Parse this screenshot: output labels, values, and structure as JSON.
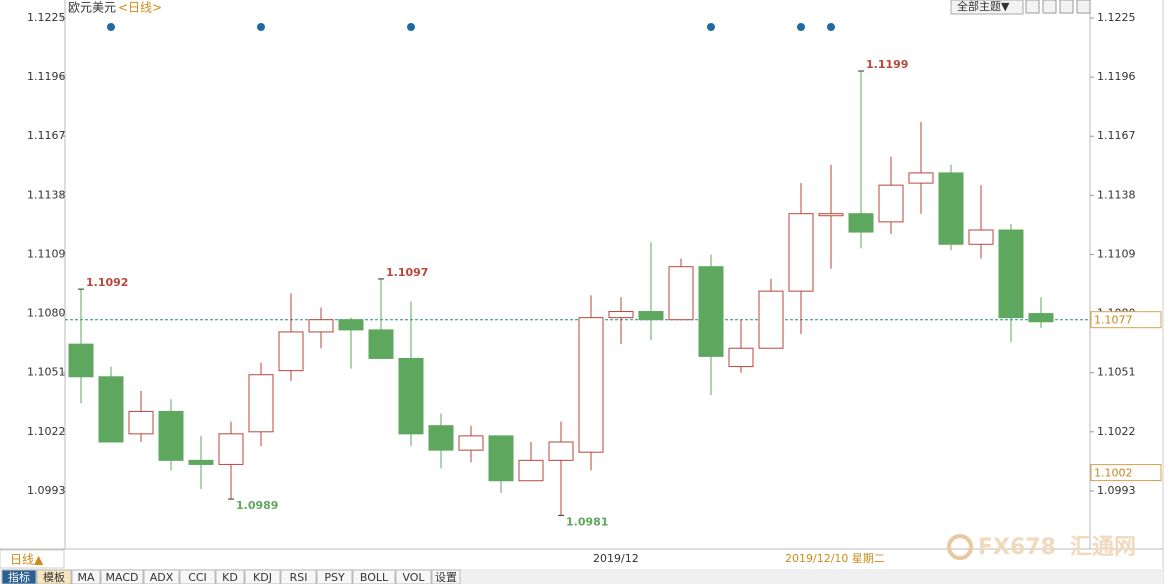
{
  "chart_data": {
    "type": "candlestick",
    "title": "欧元美元",
    "period": "<日线>",
    "theme_button": "全部主题▼",
    "period_tab": "日线▲",
    "x_label": "2019/12",
    "cursor_date": "2019/12/10 星期二",
    "watermark": [
      "FX678",
      "汇通网"
    ],
    "tabs": [
      "指标",
      "模板",
      "MA",
      "MACD",
      "ADX",
      "CCI",
      "KD",
      "KDJ",
      "RSI",
      "PSY",
      "BOLL",
      "VOL",
      "设置"
    ],
    "categories": [
      null,
      null,
      null,
      null,
      null,
      null,
      null,
      null,
      null,
      null,
      null,
      null,
      null,
      null,
      null,
      null,
      null,
      null,
      null,
      null,
      null,
      null,
      null,
      null,
      null,
      null,
      null,
      null,
      null,
      null,
      null,
      null,
      null
    ],
    "open": [
      1.1065,
      1.1049,
      1.1021,
      1.1032,
      1.1008,
      1.1006,
      1.1022,
      1.1052,
      1.1071,
      1.1077,
      1.1072,
      1.1058,
      1.1025,
      1.1013,
      1.102,
      1.0998,
      1.1008,
      1.1012,
      1.1078,
      1.1081,
      1.1077,
      1.1103,
      1.1054,
      1.1063,
      1.1091,
      1.1128,
      1.1129,
      1.1125,
      1.1144,
      1.1149,
      1.1114,
      1.1121,
      1.108
    ],
    "high": [
      1.1092,
      1.1054,
      1.1042,
      1.1038,
      1.102,
      1.1027,
      1.1056,
      1.109,
      1.1083,
      1.1078,
      1.1097,
      1.1086,
      1.1031,
      1.1025,
      1.102,
      1.1017,
      1.1027,
      1.1089,
      1.1088,
      1.1115,
      1.1107,
      1.1109,
      1.1077,
      1.1097,
      1.1144,
      1.1153,
      1.1199,
      1.1157,
      1.1174,
      1.1153,
      1.1143,
      1.1124,
      1.1088
    ],
    "low": [
      1.1036,
      1.1017,
      1.1017,
      1.1003,
      1.0994,
      1.0989,
      1.1015,
      1.1047,
      1.1063,
      1.1053,
      1.1058,
      1.1015,
      1.1004,
      1.1007,
      1.0992,
      1.0998,
      1.0981,
      1.1003,
      1.1065,
      1.1067,
      1.1077,
      1.104,
      1.1051,
      1.1063,
      1.107,
      1.1102,
      1.1112,
      1.1119,
      1.1129,
      1.1111,
      1.1107,
      1.1066,
      1.1073
    ],
    "close": [
      1.1049,
      1.1017,
      1.1032,
      1.1008,
      1.1006,
      1.1021,
      1.105,
      1.1071,
      1.1077,
      1.1072,
      1.1058,
      1.1021,
      1.1013,
      1.102,
      1.0998,
      1.1008,
      1.1017,
      1.1078,
      1.1081,
      1.1077,
      1.1103,
      1.1059,
      1.1063,
      1.1091,
      1.1129,
      1.1129,
      1.112,
      1.1143,
      1.1149,
      1.1114,
      1.1121,
      1.1078,
      1.1076
    ],
    "up_color": "#b8473b",
    "down_color": "#5ea75e",
    "high_labels": [
      1.1092,
      1.1097,
      1.1199
    ],
    "low_labels": [
      1.0989,
      1.0981
    ],
    "events": [
      1,
      6,
      11,
      21,
      24,
      25
    ],
    "event_color": "#1f6aa5",
    "price_line": 1.1077,
    "price_line_color": "#2a8a8a",
    "cursor_price": 1.1002,
    "ylim": [
      1.0965,
      1.1225
    ],
    "yticks": [
      1.0993,
      1.1022,
      1.1051,
      {
        "value": 1.108,
        "label": "1.1080"
      },
      1.1109,
      1.1138,
      1.1167,
      1.1196,
      1.1225
    ],
    "grid": false
  }
}
